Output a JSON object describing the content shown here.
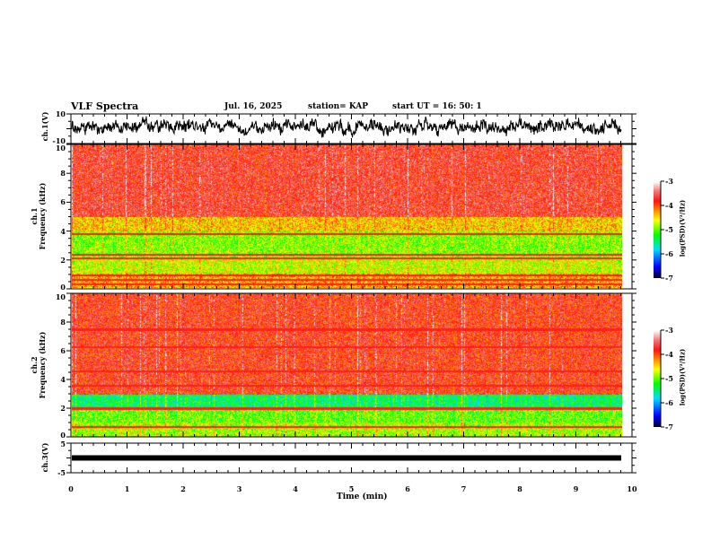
{
  "header": {
    "title": "VLF Spectra",
    "date": "Jul. 16, 2025",
    "station": "station= KAP",
    "start": "start  UT =   16: 50: 1"
  },
  "chart_data": [
    {
      "type": "line",
      "name": "ch1 waveform",
      "ylabel": "ch.1(V)",
      "ylim": [
        -10,
        10
      ],
      "yticks": [
        "10",
        "-10"
      ],
      "xlim": [
        0,
        10
      ]
    },
    {
      "type": "heatmap",
      "name": "ch1 spectrogram",
      "ylabel": "ch.1\nFrequency  (kHz)",
      "ylabel_lines": [
        "ch.1",
        "Frequency  (kHz)"
      ],
      "ylim": [
        0,
        10
      ],
      "yticks": [
        "0",
        "2",
        "4",
        "6",
        "8",
        "10"
      ],
      "xlim": [
        0,
        10
      ],
      "colorbar": {
        "label": "log(PSD)(V²/Hz)",
        "range": [
          -7,
          -3
        ],
        "ticks": [
          "-3",
          "-4",
          "-5",
          "-6",
          "-7"
        ]
      },
      "bands": [
        {
          "f": [
            5,
            10
          ],
          "level": -3.7
        },
        {
          "f": [
            4,
            5
          ],
          "level": -4.4
        },
        {
          "f": [
            2,
            4
          ],
          "level": -4.9
        },
        {
          "f": [
            1,
            2
          ],
          "level": -4.7
        },
        {
          "f": [
            0,
            1
          ],
          "level": -4.3
        }
      ],
      "lines_khz": [
        3.8,
        2.35,
        2.1,
        0.9,
        0.6,
        0.3
      ]
    },
    {
      "type": "heatmap",
      "name": "ch2 spectrogram",
      "ylabel_lines": [
        "ch.2",
        "Frequency  (kHz)"
      ],
      "ylim": [
        0,
        10
      ],
      "yticks": [
        "0",
        "2",
        "4",
        "6",
        "8",
        "10"
      ],
      "xlim": [
        0,
        10
      ],
      "colorbar": {
        "label": "log(PSD)(V²/Hz)",
        "range": [
          -7,
          -3
        ],
        "ticks": [
          "-3",
          "-4",
          "-5",
          "-6",
          "-7"
        ]
      },
      "bands": [
        {
          "f": [
            3,
            10
          ],
          "level": -3.8
        },
        {
          "f": [
            2,
            3
          ],
          "level": -5.4
        },
        {
          "f": [
            1,
            2
          ],
          "level": -5.0
        },
        {
          "f": [
            0,
            1
          ],
          "level": -4.8
        }
      ],
      "lines_khz": [
        7.5,
        6.3,
        4.6,
        3.6,
        2.0,
        0.7
      ]
    },
    {
      "type": "line",
      "name": "ch3 waveform",
      "ylabel": "ch.3(V)",
      "ylim": [
        -5,
        5
      ],
      "yticks": [
        "5",
        "-5"
      ],
      "level": 0,
      "xlim": [
        0,
        10
      ],
      "xlabel": "Time  (min)",
      "xticks": [
        "0",
        "1",
        "2",
        "3",
        "4",
        "5",
        "6",
        "7",
        "8",
        "9",
        "10"
      ]
    }
  ]
}
